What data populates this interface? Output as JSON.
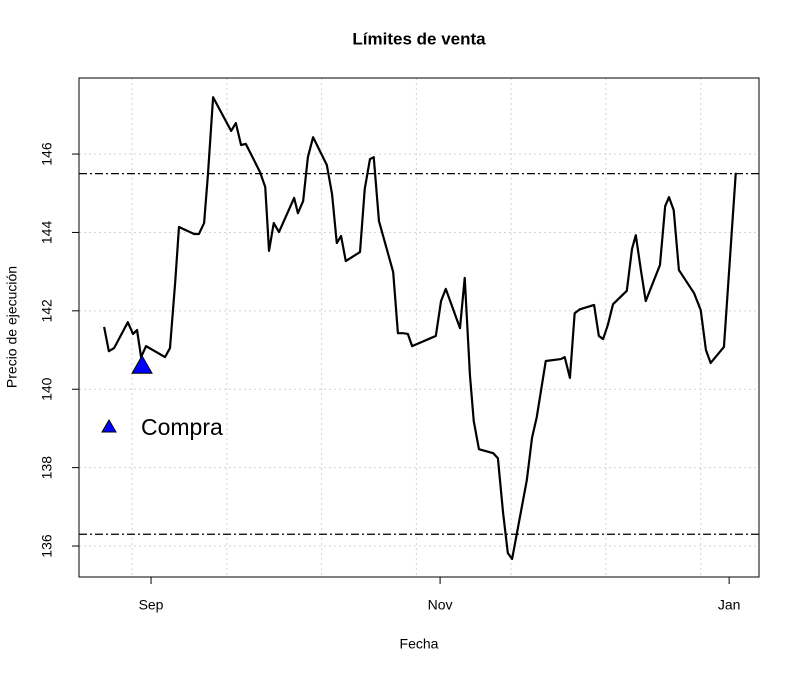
{
  "chart_data": {
    "type": "line",
    "title": "Límites de venta",
    "x_label": "Fecha",
    "y_label": "Precio de ejecución",
    "xlim": [
      -15.2,
      128.3
    ],
    "ylim": [
      135.21,
      147.94
    ],
    "xticks": [
      {
        "value": 0,
        "label": "Sep"
      },
      {
        "value": 61,
        "label": "Nov"
      },
      {
        "value": 122,
        "label": "Jan"
      }
    ],
    "yticks": [
      136,
      138,
      140,
      142,
      144,
      146
    ],
    "xgrid": [
      -4,
      16,
      36,
      56,
      76,
      96,
      116
    ],
    "grid": true,
    "x": [
      -9.9,
      -8.9,
      -7.8,
      -4.9,
      -3.8,
      -2.95,
      -2.1,
      -1.05,
      2.95,
      4.0,
      5.1,
      5.9,
      9.1,
      10.1,
      11.2,
      12.0,
      13.1,
      16.9,
      17.9,
      19.0,
      20.0,
      23.0,
      24.1,
      24.9,
      25.9,
      27.0,
      30.2,
      31.0,
      32.1,
      33.1,
      34.2,
      37.1,
      38.2,
      39.2,
      40.1,
      41.1,
      44.1,
      45.1,
      46.2,
      47.0,
      48.1,
      51.1,
      52.1,
      53.2,
      54.2,
      55.1,
      60.1,
      61.2,
      62.2,
      65.2,
      66.2,
      67.3,
      68.1,
      69.2,
      72.2,
      73.2,
      74.3,
      75.3,
      76.2,
      79.3,
      80.4,
      81.4,
      83.3,
      86.5,
      87.3,
      88.4,
      89.4,
      90.5,
      93.5,
      94.5,
      95.4,
      96.4,
      97.5,
      100.4,
      101.5,
      102.3,
      103.4,
      104.4,
      107.4,
      108.5,
      109.3,
      110.3,
      111.4,
      114.6,
      116.0,
      117.1,
      118.1,
      120.9,
      123.4
    ],
    "series": [
      {
        "color": "#000000",
        "values": [
          141.59,
          140.97,
          141.05,
          141.71,
          141.41,
          141.51,
          140.82,
          141.1,
          140.82,
          141.05,
          142.73,
          144.14,
          143.96,
          143.96,
          144.24,
          145.46,
          147.45,
          146.59,
          146.79,
          146.23,
          146.26,
          145.54,
          145.16,
          143.53,
          144.24,
          144.01,
          144.88,
          144.49,
          144.8,
          145.92,
          146.43,
          145.72,
          144.98,
          143.73,
          143.91,
          143.27,
          143.5,
          145.11,
          145.87,
          145.92,
          144.29,
          142.99,
          141.43,
          141.43,
          141.41,
          141.1,
          141.36,
          142.25,
          142.56,
          141.56,
          142.84,
          140.36,
          139.19,
          138.47,
          138.37,
          138.24,
          136.84,
          135.82,
          135.67,
          137.68,
          138.76,
          139.29,
          140.72,
          140.77,
          140.82,
          140.29,
          141.94,
          142.04,
          142.15,
          141.36,
          141.28,
          141.64,
          142.17,
          142.51,
          143.58,
          143.93,
          143.02,
          142.25,
          143.17,
          144.67,
          144.9,
          144.57,
          143.04,
          142.45,
          142.02,
          141.0,
          140.67,
          141.08,
          145.52
        ]
      }
    ],
    "hlines": [
      145.5,
      136.3
    ],
    "markers": [
      {
        "name": "Compra",
        "x": -1.9,
        "y": 140.6,
        "color": "#0000ff"
      }
    ]
  }
}
